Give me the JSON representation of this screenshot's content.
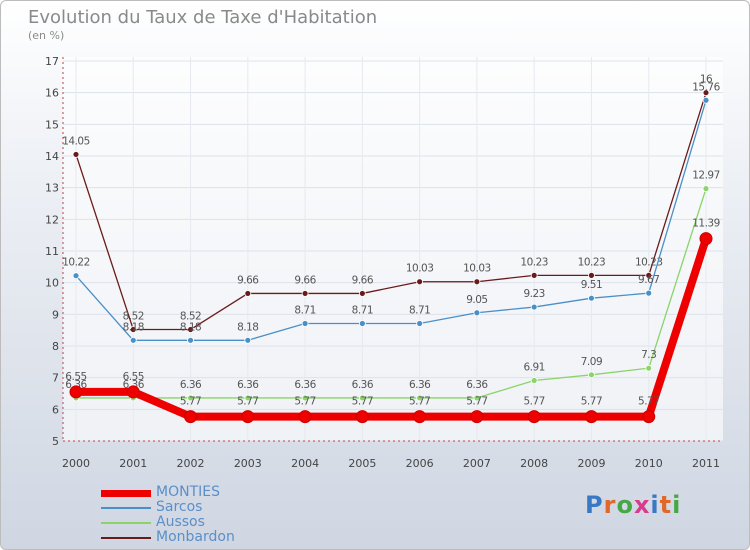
{
  "title": "Evolution du Taux de Taxe d'Habitation",
  "subtitle": "(en %)",
  "logo": {
    "letters": [
      "P",
      "r",
      "o",
      "x",
      "i",
      "t",
      "i"
    ],
    "colors": [
      "#3a78c6",
      "#e0682a",
      "#45a845",
      "#d83a8c",
      "#3a78c6",
      "#e0682a",
      "#45a845"
    ]
  },
  "chart_data": {
    "type": "line",
    "x": [
      "2000",
      "2001",
      "2002",
      "2003",
      "2004",
      "2005",
      "2006",
      "2007",
      "2008",
      "2009",
      "2010",
      "2011"
    ],
    "ylim": [
      5,
      17
    ],
    "yticks": [
      "5",
      "6",
      "7",
      "8",
      "9",
      "10",
      "11",
      "12",
      "13",
      "14",
      "15",
      "16",
      "17"
    ],
    "legend_placement": "bottom-left",
    "series": [
      {
        "name": "Monbardon",
        "color": "#6b1a1a",
        "values": [
          14.05,
          8.52,
          8.52,
          9.66,
          9.66,
          9.66,
          10.03,
          10.03,
          10.23,
          10.23,
          10.23,
          16
        ],
        "labels": [
          "14.05",
          "8.52",
          "8.52",
          "9.66",
          "9.66",
          "9.66",
          "10.03",
          "10.03",
          "10.23",
          "10.23",
          "10.23",
          "16"
        ]
      },
      {
        "name": "Sarcos",
        "color": "#4a90c8",
        "values": [
          10.22,
          8.18,
          8.18,
          8.18,
          8.71,
          8.71,
          8.71,
          9.05,
          9.23,
          9.51,
          9.67,
          15.76
        ],
        "labels": [
          "10.22",
          "8.18",
          "8.18",
          "8.18",
          "8.71",
          "8.71",
          "8.71",
          "9.05",
          "9.23",
          "9.51",
          "9.67",
          "15.76"
        ]
      },
      {
        "name": "Aussos",
        "color": "#8ad46a",
        "values": [
          6.36,
          6.36,
          6.36,
          6.36,
          6.36,
          6.36,
          6.36,
          6.36,
          6.91,
          7.09,
          7.3,
          12.97
        ],
        "labels": [
          "6.36",
          "6.36",
          "6.36",
          "6.36",
          "6.36",
          "6.36",
          "6.36",
          "6.36",
          "6.91",
          "7.09",
          "7.3",
          "12.97"
        ]
      },
      {
        "name": "MONTIES",
        "color": "#ee0000",
        "values": [
          6.55,
          6.55,
          5.77,
          5.77,
          5.77,
          5.77,
          5.77,
          5.77,
          5.77,
          5.77,
          5.77,
          11.39
        ],
        "labels": [
          "6.55",
          "6.55",
          "5.77",
          "5.77",
          "5.77",
          "5.77",
          "5.77",
          "5.77",
          "5.77",
          "5.77",
          "5.77",
          "11.39"
        ]
      }
    ],
    "legend_order": [
      "MONTIES",
      "Sarcos",
      "Aussos",
      "Monbardon"
    ]
  }
}
